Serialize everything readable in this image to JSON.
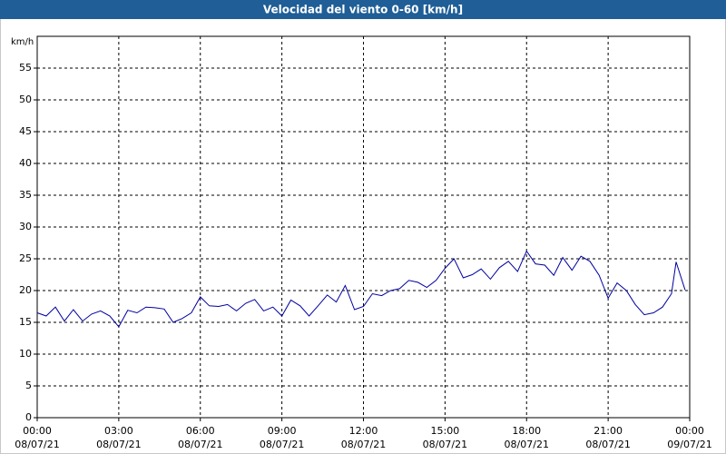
{
  "chart_data": {
    "type": "line",
    "title": "Velocidad del viento 0-60 [km/h]",
    "y_label": "km/h",
    "x": [
      0,
      0.33,
      0.67,
      1,
      1.33,
      1.67,
      2,
      2.33,
      2.67,
      3,
      3.33,
      3.67,
      4,
      4.33,
      4.67,
      5,
      5.33,
      5.67,
      6,
      6.33,
      6.67,
      7,
      7.33,
      7.67,
      8,
      8.33,
      8.67,
      9,
      9.33,
      9.67,
      10,
      10.33,
      10.67,
      11,
      11.33,
      11.67,
      12,
      12.33,
      12.67,
      13,
      13.33,
      13.67,
      14,
      14.33,
      14.67,
      15,
      15.33,
      15.67,
      16,
      16.33,
      16.67,
      17,
      17.33,
      17.67,
      18,
      18.33,
      18.67,
      19,
      19.33,
      19.67,
      20,
      20.33,
      20.67,
      21,
      21.33,
      21.67,
      22,
      22.33,
      22.67,
      23,
      23.33,
      23.5,
      23.83
    ],
    "series": [
      {
        "name": "Velocidad del viento",
        "color": "#0000a0",
        "values": [
          16.5,
          16,
          17.4,
          15.2,
          17,
          15.2,
          16.3,
          16.8,
          16,
          14.3,
          16.9,
          16.5,
          17.4,
          17.3,
          17.1,
          15,
          15.6,
          16.5,
          19,
          17.6,
          17.5,
          17.8,
          16.8,
          18,
          18.6,
          16.8,
          17.4,
          16,
          18.5,
          17.6,
          16,
          17.6,
          19.3,
          18.2,
          20.8,
          17,
          17.5,
          19.5,
          19.2,
          20,
          20.3,
          21.6,
          21.3,
          20.5,
          21.6,
          23.5,
          25,
          22,
          22.5,
          23.4,
          21.8,
          23.6,
          24.6,
          23,
          26.2,
          24.2,
          24,
          22.4,
          25.2,
          23.2,
          25.4,
          24.6,
          22.4,
          18.8,
          21.2,
          20,
          17.8,
          16.2,
          16.5,
          17.4,
          19.5,
          24.5,
          20.1
        ]
      }
    ],
    "xlim": [
      0,
      24
    ],
    "xticks": [
      {
        "value": 0,
        "label": "00:00"
      },
      {
        "value": 3,
        "label": "03:00"
      },
      {
        "value": 6,
        "label": "06:00"
      },
      {
        "value": 9,
        "label": "09:00"
      },
      {
        "value": 12,
        "label": "12:00"
      },
      {
        "value": 15,
        "label": "15:00"
      },
      {
        "value": 18,
        "label": "18:00"
      },
      {
        "value": 21,
        "label": "21:00"
      },
      {
        "value": 24,
        "label": "00:00"
      }
    ],
    "xtick_dates": [
      "08/07/21",
      "08/07/21",
      "08/07/21",
      "08/07/21",
      "08/07/21",
      "08/07/21",
      "08/07/21",
      "08/07/21",
      "09/07/21"
    ],
    "ylim": [
      0,
      60
    ],
    "yticks": [
      0,
      5,
      10,
      15,
      20,
      25,
      30,
      35,
      40,
      45,
      50,
      55
    ],
    "grid": true
  }
}
